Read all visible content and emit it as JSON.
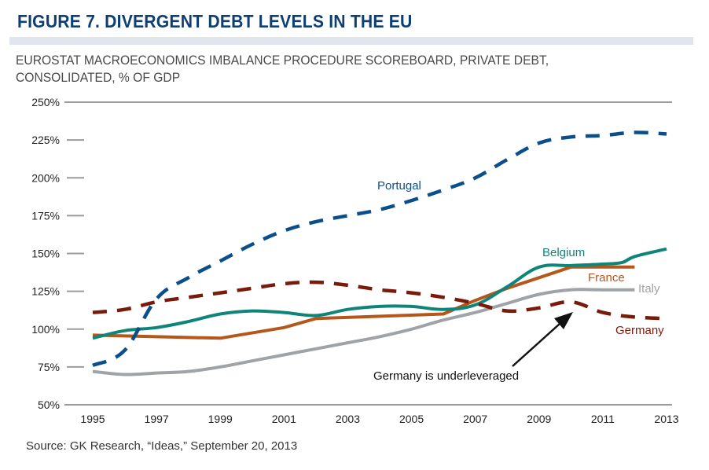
{
  "figure": {
    "title": "FIGURE 7. DIVERGENT DEBT LEVELS IN THE EU",
    "subtitle_line1": "EUROSTAT MACROECONOMICS IMBALANCE PROCEDURE SCOREBOARD, PRIVATE DEBT,",
    "subtitle_line2": "CONSOLIDATED, % OF GDP",
    "source": "Source: GK Research, “Ideas,” September 20, 2013"
  },
  "colors": {
    "title": "#0e3f73",
    "axis": "#9a9b9e",
    "portugal": "#0b4f8a",
    "germany": "#7a1a0a",
    "belgium": "#0f8478",
    "france": "#b5561a",
    "italy": "#9fa2a6"
  },
  "chart_data": {
    "type": "line",
    "title": "FIGURE 7. DIVERGENT DEBT LEVELS IN THE EU",
    "subtitle": "EUROSTAT MACROECONOMICS IMBALANCE PROCEDURE SCOREBOARD, PRIVATE DEBT, CONSOLIDATED, % OF GDP",
    "xlabel": "",
    "ylabel": "",
    "xlim": [
      1995,
      2013
    ],
    "ylim": [
      50,
      250
    ],
    "x_ticks": [
      1995,
      1997,
      1999,
      2001,
      2003,
      2005,
      2007,
      2009,
      2011,
      2013
    ],
    "x_tick_labels": [
      "1995",
      "1997",
      "1999",
      "2001",
      "2003",
      "2005",
      "2007",
      "2009",
      "2011",
      "2013"
    ],
    "y_ticks": [
      50,
      75,
      100,
      125,
      150,
      175,
      200,
      225,
      250
    ],
    "y_tick_labels": [
      "50%",
      "75%",
      "100%",
      "125%",
      "150%",
      "175%",
      "200%",
      "225%",
      "250%"
    ],
    "grid": false,
    "legend": "inline labels",
    "series": [
      {
        "name": "Portugal",
        "style": "dashed",
        "color": "#0b4f8a",
        "x": [
          1995,
          1996,
          1997,
          1998,
          1999,
          2000,
          2001,
          2002,
          2003,
          2004,
          2005,
          2006,
          2007,
          2008,
          2009,
          2010,
          2011,
          2012,
          2013
        ],
        "values": [
          76,
          86,
          120,
          134,
          145,
          156,
          165,
          171,
          175,
          179,
          185,
          192,
          200,
          212,
          223,
          227,
          228,
          230,
          229
        ]
      },
      {
        "name": "Germany",
        "style": "dashed",
        "color": "#7a1a0a",
        "x": [
          1995,
          1996,
          1997,
          1998,
          1999,
          2000,
          2001,
          2002,
          2003,
          2004,
          2005,
          2006,
          2007,
          2008,
          2009,
          2010,
          2011,
          2012,
          2013
        ],
        "values": [
          111,
          113,
          118,
          121,
          124,
          127,
          130,
          131,
          129,
          126,
          124,
          121,
          117,
          112,
          114,
          118,
          111,
          108,
          107
        ]
      },
      {
        "name": "Belgium",
        "style": "solid",
        "color": "#0f8478",
        "x": [
          1995,
          1996,
          1997,
          1998,
          1999,
          2000,
          2001,
          2002,
          2003,
          2004,
          2005,
          2006,
          2007,
          2008,
          2009,
          2010,
          2011,
          2011.6,
          2012,
          2013
        ],
        "values": [
          94,
          99,
          101,
          105,
          110,
          112,
          111,
          109,
          113,
          115,
          115,
          113,
          116,
          128,
          141,
          142,
          143,
          144,
          148,
          153
        ]
      },
      {
        "name": "France",
        "style": "solid",
        "color": "#b5561a",
        "x": [
          1995,
          1997,
          1999,
          2001,
          2002,
          2006,
          2007,
          2008,
          2009,
          2010,
          2012
        ],
        "values": [
          96,
          95,
          94,
          101,
          107,
          110,
          119,
          127,
          134,
          141,
          141
        ]
      },
      {
        "name": "Italy",
        "style": "solid",
        "color": "#9fa2a6",
        "x": [
          1995,
          1996,
          1997,
          1998,
          1999,
          2000,
          2001,
          2002,
          2003,
          2004,
          2005,
          2006,
          2007,
          2008,
          2009,
          2010,
          2011,
          2012
        ],
        "values": [
          72,
          70,
          71,
          72,
          75,
          79,
          83,
          87,
          91,
          95,
          100,
          106,
          111,
          117,
          123,
          126,
          126,
          126
        ]
      }
    ],
    "annotations": [
      {
        "text": "Germany is underleveraged",
        "points_to": {
          "x": 2010,
          "y": 118
        }
      }
    ]
  },
  "labels": {
    "portugal": "Portugal",
    "belgium": "Belgium",
    "france": "France",
    "italy": "Italy",
    "germany": "Germany",
    "annotation": "Germany is underleveraged"
  }
}
